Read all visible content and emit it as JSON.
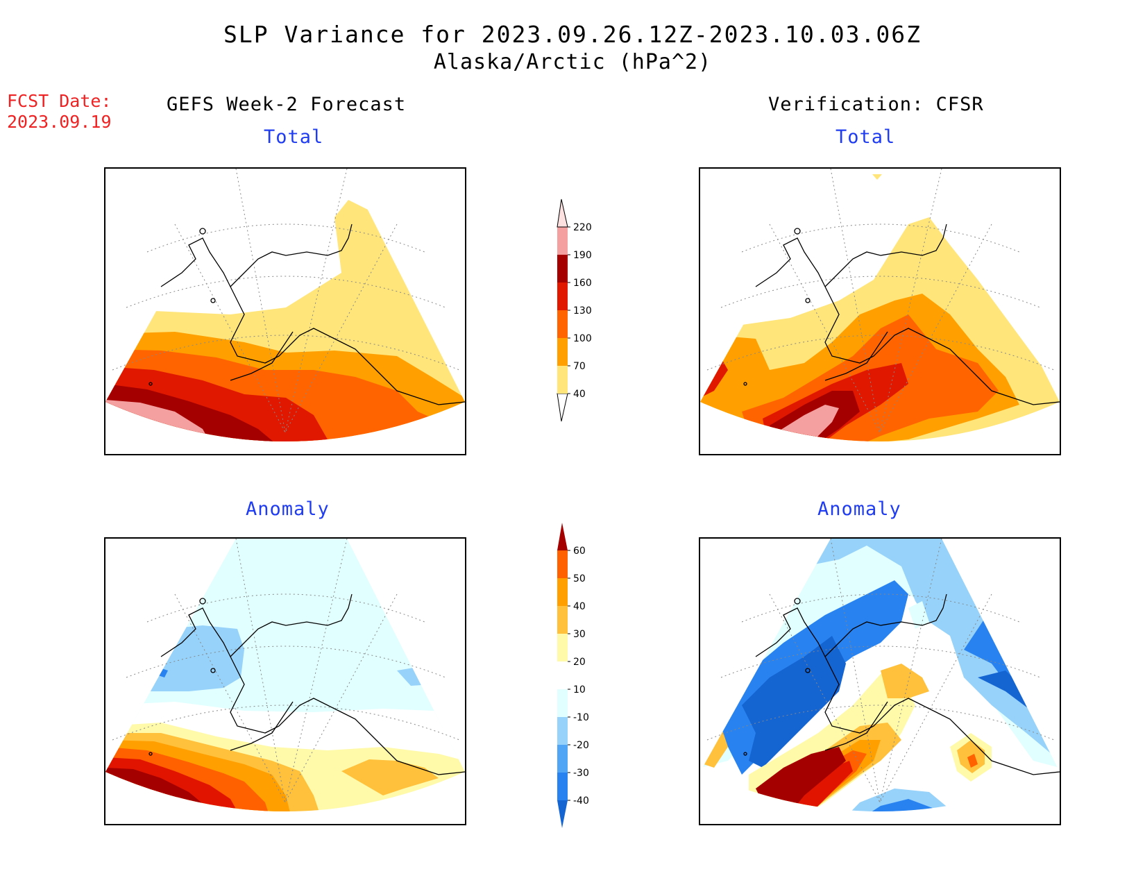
{
  "title": {
    "line1": "SLP Variance for 2023.09.26.12Z-2023.10.03.06Z",
    "line2": "Alaska/Arctic (hPa^2)"
  },
  "fcst": {
    "label": "FCST Date:",
    "date": "2023.09.19"
  },
  "columns": {
    "left": "GEFS Week-2 Forecast",
    "right": "Verification: CFSR"
  },
  "panels": {
    "top_left": "Total",
    "top_right": "Total",
    "bottom_left": "Anomaly",
    "bottom_right": "Anomaly"
  },
  "legend_total": {
    "ticks": [
      "40",
      "70",
      "100",
      "130",
      "160",
      "190",
      "220"
    ],
    "colors": [
      "#ffe57a",
      "#ffa000",
      "#ff6400",
      "#e01800",
      "#a50000",
      "#f4a0a0",
      "#fde0e0"
    ]
  },
  "legend_anom": {
    "ticks": [
      "-40",
      "-30",
      "-20",
      "-10",
      "10",
      "20",
      "30",
      "40",
      "50",
      "60"
    ],
    "colors": [
      "#1464d2",
      "#2882f0",
      "#50a5f5",
      "#96d2fa",
      "#e1ffff",
      "#ffffff",
      "#fffaaa",
      "#ffc03c",
      "#ffa000",
      "#ff6000",
      "#e11400",
      "#a50000"
    ]
  },
  "colors": {
    "title_red": "#ee2222",
    "panel_title_blue": "#1f3cf0"
  }
}
